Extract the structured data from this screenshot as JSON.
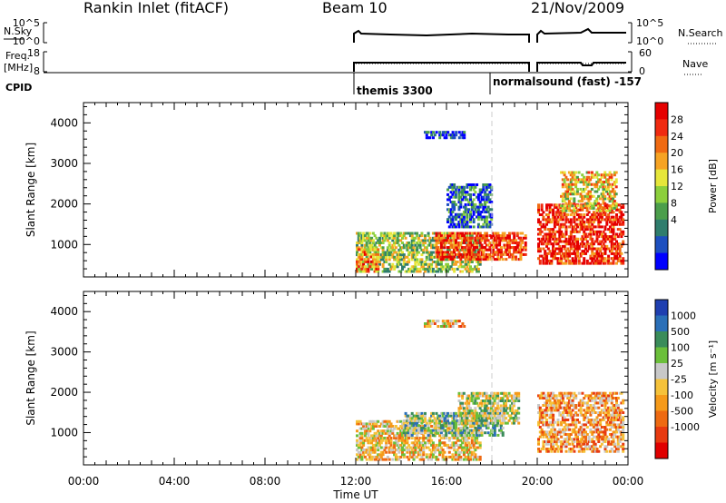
{
  "header": {
    "station": "Rankin Inlet (fitACF)",
    "beam": "Beam 10",
    "date": "21/Nov/2009"
  },
  "params": {
    "nsky_label": "N.Sky",
    "nsky_ticks": [
      "10^5",
      "10^0"
    ],
    "nsearch_label": "N.Search",
    "nsearch_ticks": [
      "10^5",
      "10^0"
    ],
    "freq_label": "Freq.",
    "freq_unit": "[MHz]",
    "freq_ticks": [
      "18",
      "8"
    ],
    "nave_label": "Nave",
    "nave_ticks": [
      "60",
      "0"
    ],
    "cpid_label": "CPID",
    "cpid_segments": [
      {
        "start": "12:00",
        "label": "themis 3300"
      },
      {
        "start": "18:00",
        "label": "normalsound (fast) -157"
      }
    ]
  },
  "chart_data": [
    {
      "type": "heatmap",
      "name": "power",
      "xlabel": "",
      "ylabel": "Slant Range [km]",
      "xlim": [
        "00:00",
        "24:00"
      ],
      "ylim": [
        200,
        4500
      ],
      "yticks": [
        1000,
        2000,
        3000,
        4000
      ],
      "colorbar_label": "Power [dB]",
      "colorbar_ticks": [
        "28",
        "24",
        "20",
        "16",
        "12",
        "8",
        "4"
      ],
      "colorbar_colors": [
        "#0000ff",
        "#1d4fbf",
        "#2f7d6d",
        "#4b9e4b",
        "#8ccf3c",
        "#e6e63a",
        "#f6a323",
        "#f06a12",
        "#f02a10",
        "#e50000"
      ],
      "data_window": {
        "start": "12:00",
        "end": "24:00",
        "note_gaps": [
          "19:45-20:00"
        ]
      },
      "regions": [
        {
          "x": [
            12.0,
            17.5
          ],
          "y": [
            300,
            1300
          ],
          "intensity": 0.45
        },
        {
          "x": [
            15.5,
            19.5
          ],
          "y": [
            600,
            1300
          ],
          "intensity": 0.85
        },
        {
          "x": [
            20.0,
            23.8
          ],
          "y": [
            500,
            2000
          ],
          "intensity": 0.9
        },
        {
          "x": [
            12.0,
            13.0
          ],
          "y": [
            300,
            900
          ],
          "intensity": 0.7
        },
        {
          "x": [
            15.0,
            16.8
          ],
          "y": [
            3600,
            3800
          ],
          "intensity": 0.15
        },
        {
          "x": [
            16.0,
            18.0
          ],
          "y": [
            1400,
            2500
          ],
          "intensity": 0.2
        },
        {
          "x": [
            21.0,
            23.5
          ],
          "y": [
            1800,
            2800
          ],
          "intensity": 0.6
        }
      ]
    },
    {
      "type": "heatmap",
      "name": "velocity",
      "xlabel": "Time UT",
      "ylabel": "Slant Range [km]",
      "xlim": [
        "00:00",
        "24:00"
      ],
      "ylim": [
        200,
        4500
      ],
      "yticks": [
        1000,
        2000,
        3000,
        4000
      ],
      "xticks": [
        "00:00",
        "04:00",
        "08:00",
        "12:00",
        "16:00",
        "20:00",
        "00:00"
      ],
      "colorbar_label": "Velocity [m s⁻¹]",
      "colorbar_ticks": [
        "1000",
        "500",
        "100",
        "25",
        "-25",
        "-100",
        "-500",
        "-1000"
      ],
      "colorbar_colors": [
        "#1f3fb0",
        "#2a6fb8",
        "#3a8c5a",
        "#6bbf3a",
        "#c8c8c8",
        "#f5c23a",
        "#f59a1a",
        "#ee6a12",
        "#e83a10",
        "#e00000"
      ],
      "data_window": {
        "start": "12:00",
        "end": "24:00",
        "note_gaps": [
          "19:45-20:00"
        ]
      },
      "regions": [
        {
          "x": [
            12.0,
            17.5
          ],
          "y": [
            300,
            1300
          ],
          "intensity": 0.55
        },
        {
          "x": [
            14.0,
            18.5
          ],
          "y": [
            900,
            1500
          ],
          "intensity": 0.35
        },
        {
          "x": [
            20.0,
            23.8
          ],
          "y": [
            500,
            2000
          ],
          "intensity": 0.65
        },
        {
          "x": [
            16.5,
            19.2
          ],
          "y": [
            1200,
            2000
          ],
          "intensity": 0.45
        },
        {
          "x": [
            15.0,
            16.8
          ],
          "y": [
            3600,
            3800
          ],
          "intensity": 0.6
        }
      ]
    }
  ]
}
